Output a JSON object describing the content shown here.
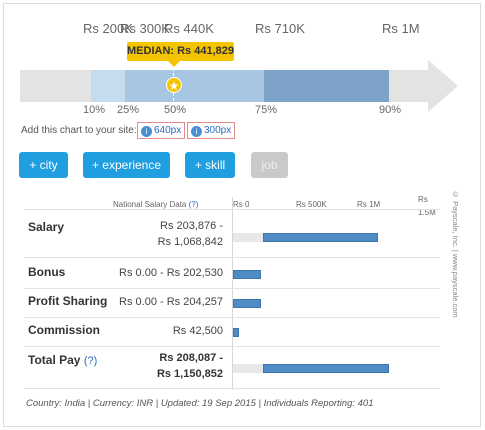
{
  "scale": {
    "labels": [
      "Rs 200K",
      "Rs 300K",
      "Rs 440K",
      "Rs 710K",
      "Rs 1M"
    ],
    "median_tooltip": "MEDIAN: Rs 441,829",
    "percentiles": [
      "10%",
      "25%",
      "50%",
      "75%",
      "90%"
    ],
    "star_icon": "star-icon"
  },
  "add_chart": {
    "label": "Add this chart to your site:",
    "links": [
      "640px",
      "300px"
    ]
  },
  "buttons": {
    "city": "+ city",
    "experience": "+ experience",
    "skill": "+ skill",
    "job": "job"
  },
  "table": {
    "header_data": "National Salary Data",
    "header_help": "(?)",
    "axis_labels": [
      "Rs 0",
      "Rs 500K",
      "Rs 1M",
      "Rs 1.5M"
    ],
    "rows": [
      {
        "label": "Salary",
        "value_line1": "Rs 203,876 -",
        "value_line2": "Rs 1,068,842",
        "min": 203876,
        "max": 1068842
      },
      {
        "label": "Bonus",
        "value": "Rs 0.00 - Rs 202,530",
        "min": 0,
        "max": 202530
      },
      {
        "label": "Profit Sharing",
        "value": "Rs 0.00 - Rs 204,257",
        "min": 0,
        "max": 204257
      },
      {
        "label": "Commission",
        "value": "Rs 42,500",
        "min": 0,
        "max": 42500
      },
      {
        "label": "Total Pay",
        "help": "(?)",
        "value_line1": "Rs 208,087 -",
        "value_line2": "Rs 1,150,852",
        "min": 208087,
        "max": 1150852
      }
    ]
  },
  "footer": "Country: India | Currency: INR | Updated: 19 Sep 2015 | Individuals Reporting: 401",
  "copyright": "© Payscale, Inc. | www.payscale.com",
  "colors": {
    "accent_button": "#1f9fe0",
    "median_yellow": "#f5c400",
    "bar_blue": "#4f8cc6"
  }
}
